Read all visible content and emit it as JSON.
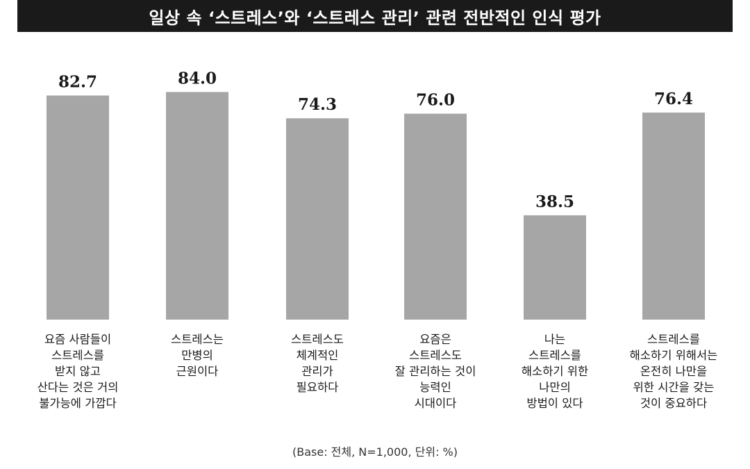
{
  "title": "일상 속 ‘스트레스’와 ‘스트레스 관리’ 관련 전반적인 인식 평가",
  "footnote": "(Base: 전체, N=1,000, 단위: %)",
  "colors": {
    "bar": "#a6a6a6",
    "title_bg": "#1a1a1a",
    "title_text": "#ffffff"
  },
  "chart_data": {
    "type": "bar",
    "title": "일상 속 ‘스트레스’와 ‘스트레스 관리’ 관련 전반적인 인식 평가",
    "categories": [
      "요즘 사람들이 스트레스를 받지 않고 산다는 것은 거의 불가능에 가깝다",
      "스트레스는 만병의 근원이다",
      "스트레스도 체계적인 관리가 필요하다",
      "요즘은 스트레스도 잘 관리하는 것이 능력인 시대이다",
      "나는 스트레스를 해소하기 위한 나만의 방법이 있다",
      "스트레스를 해소하기 위해서는 온전히 나만을 위한 시간을 갖는 것이 중요하다"
    ],
    "category_lines": [
      [
        "요즘 사람들이",
        "스트레스를",
        "받지 않고",
        "산다는 것은 거의",
        "불가능에 가깝다"
      ],
      [
        "스트레스는",
        "만병의",
        "근원이다"
      ],
      [
        "스트레스도",
        "체계적인",
        "관리가",
        "필요하다"
      ],
      [
        "요즘은",
        "스트레스도",
        "잘 관리하는 것이",
        "능력인",
        "시대이다"
      ],
      [
        "나는",
        "스트레스를",
        "해소하기 위한",
        "나만의",
        "방법이 있다"
      ],
      [
        "스트레스를",
        "해소하기 위해서는",
        "온전히 나만을",
        "위한 시간을 갖는",
        "것이 중요하다"
      ]
    ],
    "values": [
      82.7,
      84.0,
      74.3,
      76.0,
      38.5,
      76.4
    ],
    "value_labels": [
      "82.7",
      "84.0",
      "74.3",
      "76.0",
      "38.5",
      "76.4"
    ],
    "xlabel": "",
    "ylabel": "",
    "ylim": [
      0,
      100
    ],
    "grid": false,
    "legend": "none"
  }
}
